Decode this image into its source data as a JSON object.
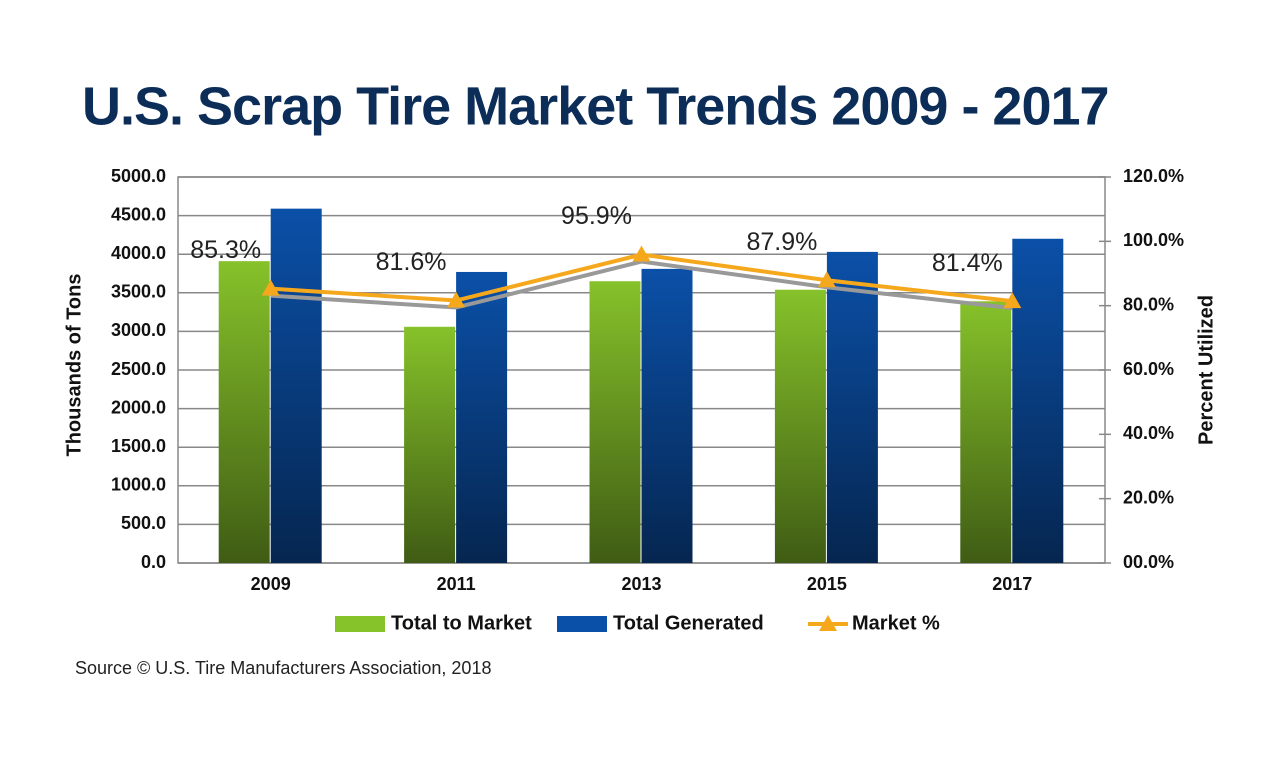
{
  "chart_data": {
    "type": "bar_line",
    "title": "U.S. Scrap Tire Market Trends 2009 - 2017",
    "source": "Source © U.S. Tire Manufacturers Association, 2018",
    "y_label": "Thousands of Tons",
    "y2_label": "Percent Utilized",
    "categories": [
      "2009",
      "2011",
      "2013",
      "2015",
      "2017"
    ],
    "series": [
      {
        "name": "Total to Market",
        "type": "bar",
        "color": "#86c22a",
        "values": [
          3910,
          3060,
          3650,
          3540,
          3390
        ]
      },
      {
        "name": "Total Generated",
        "type": "bar",
        "color": "#0b50a8",
        "values": [
          4590,
          3770,
          3810,
          4030,
          4200
        ]
      },
      {
        "name": "Market %",
        "type": "line",
        "axis": "y2",
        "color": "#f5a81c",
        "values": [
          85.3,
          81.6,
          95.9,
          87.9,
          81.4
        ],
        "value_labels": [
          "85.3%",
          "81.6%",
          "95.9%",
          "87.9%",
          "81.4%"
        ]
      }
    ],
    "ylim": [
      0,
      5000
    ],
    "yticks": [
      {
        "value": 0,
        "label": "0.0"
      },
      {
        "value": 500,
        "label": "500.0"
      },
      {
        "value": 1000,
        "label": "1000.0"
      },
      {
        "value": 1500,
        "label": "1500.0"
      },
      {
        "value": 2000,
        "label": "2000.0"
      },
      {
        "value": 2500,
        "label": "2500.0"
      },
      {
        "value": 3000,
        "label": "3000.0"
      },
      {
        "value": 3500,
        "label": "3500.0"
      },
      {
        "value": 4000,
        "label": "4000.0"
      },
      {
        "value": 4500,
        "label": "4500.0"
      },
      {
        "value": 5000,
        "label": "5000.0"
      }
    ],
    "y2lim": [
      0,
      120
    ],
    "y2ticks": [
      {
        "value": 0,
        "label": "00.0%"
      },
      {
        "value": 20,
        "label": "20.0%"
      },
      {
        "value": 40,
        "label": "40.0%"
      },
      {
        "value": 60,
        "label": "60.0%"
      },
      {
        "value": 80,
        "label": "80.0%"
      },
      {
        "value": 100,
        "label": "100.0%"
      },
      {
        "value": 120,
        "label": "120.0%"
      }
    ],
    "grid": true
  }
}
